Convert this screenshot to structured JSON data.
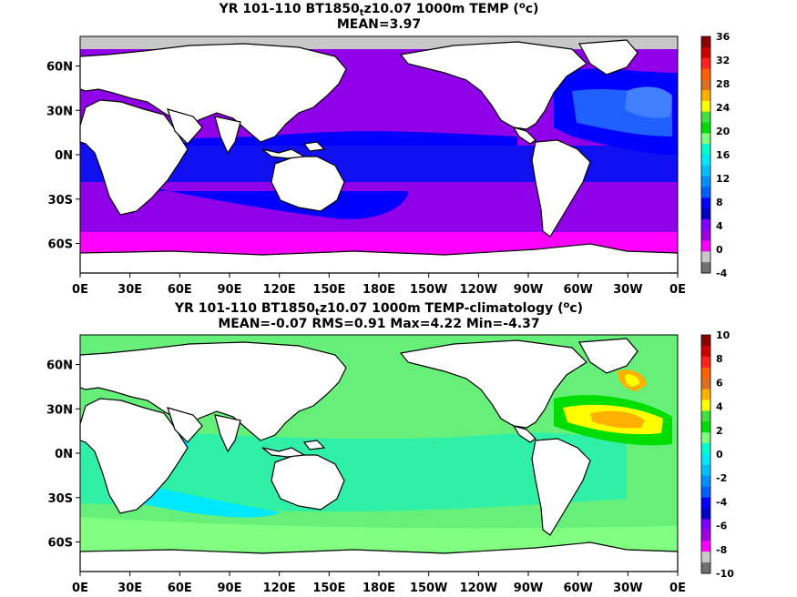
{
  "panels": [
    {
      "title_pre": "YR 101-110 BT1850",
      "title_sub": "t",
      "title_mid": "z10.07 1000m TEMP (",
      "title_sup": "o",
      "title_post": "c)",
      "stats": "MEAN=3.97",
      "colorbar": {
        "labels": [
          "36",
          "32",
          "28",
          "24",
          "20",
          "16",
          "12",
          "8",
          "4",
          "0",
          "-4"
        ],
        "colors": [
          "#8b0000",
          "#cc0000",
          "#ff2020",
          "#ff6000",
          "#e07020",
          "#ffb000",
          "#ffff00",
          "#40e040",
          "#00dd00",
          "#80ff80",
          "#00ffd0",
          "#00e8ff",
          "#00c0ff",
          "#0090ff",
          "#0060ff",
          "#0000ff",
          "#0000c0",
          "#8000ff",
          "#a000e0",
          "#ff00ff",
          "#c8c8c8",
          "#707070"
        ]
      }
    },
    {
      "title_pre": "YR 101-110 BT1850",
      "title_sub": "t",
      "title_mid": "z10.07 1000m TEMP-climatology (",
      "title_sup": "o",
      "title_post": "c)",
      "stats": "MEAN=-0.07   RMS=0.91   Max=4.22   Min=-4.37",
      "colorbar": {
        "labels": [
          "10",
          "8",
          "6",
          "4",
          "2",
          "0",
          "-2",
          "-4",
          "-6",
          "-8",
          "-10"
        ],
        "colors": [
          "#8b0000",
          "#cc0000",
          "#ff2020",
          "#ff6000",
          "#e07020",
          "#ffb000",
          "#ffff00",
          "#40e040",
          "#00dd00",
          "#80ff80",
          "#00ffd0",
          "#00e8ff",
          "#00c0ff",
          "#0090ff",
          "#0060ff",
          "#0000ff",
          "#0000c0",
          "#8000ff",
          "#a000e0",
          "#ff00ff",
          "#c8c8c8",
          "#707070"
        ]
      }
    }
  ],
  "lon_labels": [
    "0E",
    "30E",
    "60E",
    "90E",
    "120E",
    "150E",
    "180E",
    "150W",
    "120W",
    "90W",
    "60W",
    "30W",
    "0E"
  ],
  "lat_labels": [
    "60N",
    "30N",
    "0N",
    "30S",
    "60S"
  ]
}
